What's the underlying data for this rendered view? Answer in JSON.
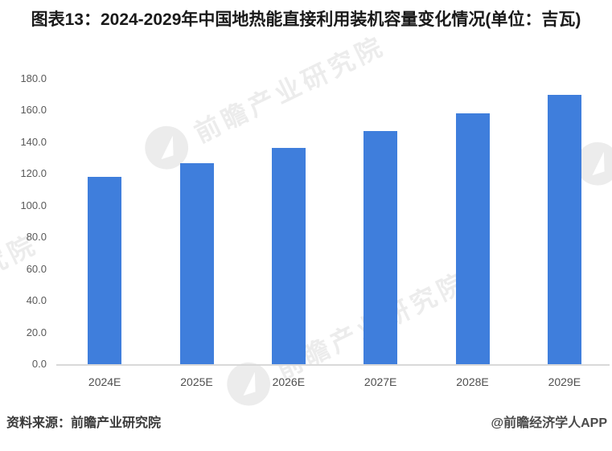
{
  "title": "图表13：2024-2029年中国地热能直接利用装机容量变化情况(单位：吉瓦)",
  "chart_data": {
    "type": "bar",
    "title": "图表13：2024-2029年中国地热能直接利用装机容量变化情况(单位：吉瓦)",
    "unit": "吉瓦",
    "categories": [
      "2024E",
      "2025E",
      "2026E",
      "2027E",
      "2028E",
      "2029E"
    ],
    "values": [
      118,
      127,
      136.5,
      147,
      158,
      170
    ],
    "xlabel": "",
    "ylabel": "",
    "ylim": [
      0,
      180
    ],
    "ytick_step": 20,
    "ytick_format_decimals": 1,
    "grid": false,
    "legend": false,
    "bar_color": "#3f7edc",
    "axis_line_color": "#d9d9d9",
    "tick_label_color": "#595959"
  },
  "footer": {
    "source": "资料来源：前瞻产业研究院",
    "credit": "@前瞻经济学人APP"
  },
  "watermark": {
    "text": "前瞻产业研究院",
    "logo": "qianzhan-logo"
  }
}
